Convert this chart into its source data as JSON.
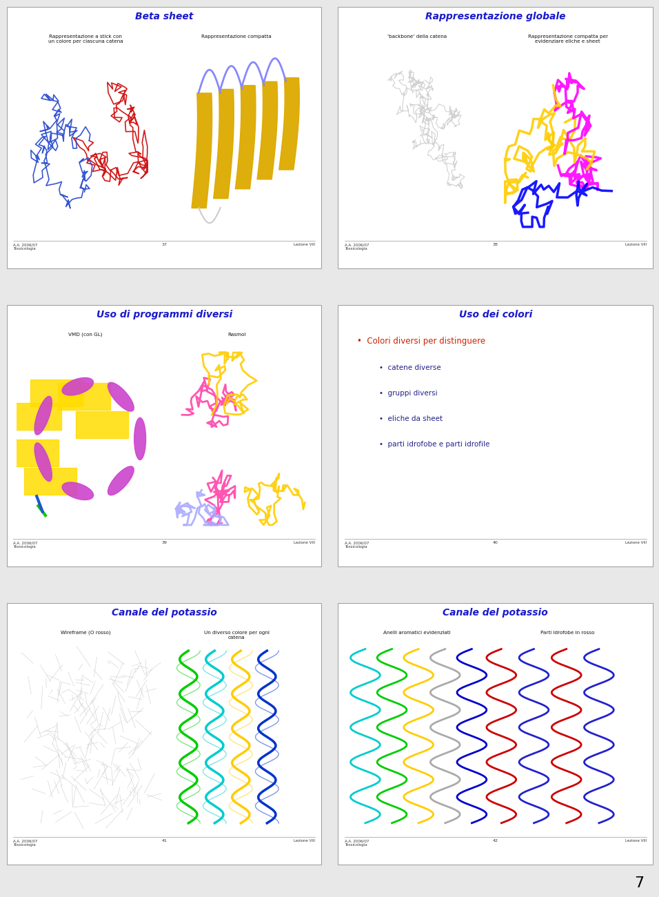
{
  "page_bg": "#e8e8e8",
  "page_number": "7",
  "slide_bg": "#ffffff",
  "title_color": "#1a1acc",
  "footer_text_color": "#333333",
  "slides": [
    {
      "id": 1,
      "title": "Beta sheet",
      "subtitle_left": "Rappresentazione a stick con\nun colore per ciascuna catena",
      "subtitle_right": "Rappresentazione compatta",
      "footer_left": "A.A. 2006/07\nTossicologia",
      "footer_center": "37",
      "footer_right": "Lezione VIII",
      "image_left_bg": "#000000",
      "image_right_bg": "#000000"
    },
    {
      "id": 2,
      "title": "Rappresentazione globale",
      "subtitle_left": "'backbone' della catena",
      "subtitle_right": "Rappresentazione compatta per\nevidenziare eliche e sheet",
      "footer_left": "A.A. 2006/07\nTossicologia",
      "footer_center": "38",
      "footer_right": "Lezione VIII",
      "image_left_bg": "#000000",
      "image_right_bg": "#000000"
    },
    {
      "id": 3,
      "title": "Uso di programmi diversi",
      "subtitle_left": "VMD (con GL)",
      "subtitle_right": "Rasmol",
      "footer_left": "A.A. 2006/07\nTossicologia",
      "footer_center": "39",
      "footer_right": "Lezione VIII",
      "image_left_bg": "#009999",
      "image_right_bg": "#111111"
    },
    {
      "id": 4,
      "title": "Uso dei colori",
      "bullet_main": "Colori diversi per distinguere",
      "bullet_main_color": "#cc2200",
      "bullets": [
        "catene diverse",
        "gruppi diversi",
        "eliche da sheet",
        "parti idrofobe e parti idrofile"
      ],
      "bullet_color": "#222288",
      "footer_left": "A.A. 2006/07\nTossicologia",
      "footer_center": "40",
      "footer_right": "Lezione VIII"
    },
    {
      "id": 5,
      "title": "Canale del potassio",
      "subtitle_left": "Wireframe (O rosso)",
      "subtitle_right": "Un diverso colore per ogni\ncatena",
      "footer_left": "A.A. 2006/07\nTossicologia",
      "footer_center": "41",
      "footer_right": "Lezione VIII",
      "image_left_bg": "#888888",
      "image_right_bg": "#000000"
    },
    {
      "id": 6,
      "title": "Canale del potassio",
      "subtitle_left": "Anelli aromatici evidenziati",
      "subtitle_right": "Parti idrofobe in rosso",
      "footer_left": "A.A. 2006/07\nTossicologia",
      "footer_center": "42",
      "footer_right": "Lezione VIII",
      "image_bg": "#000000"
    }
  ]
}
